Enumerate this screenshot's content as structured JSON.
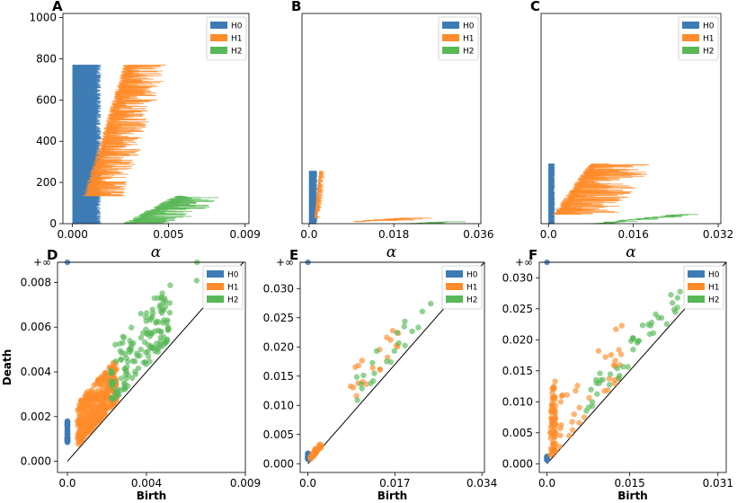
{
  "colors": {
    "H0": "#3d7bb5",
    "H1": "#ff8c2a",
    "H2": "#58b956"
  },
  "labels": {
    "alpha": "α",
    "birth": "Birth",
    "death": "Death",
    "inf": "+∞"
  },
  "chart_data": [
    {
      "panel": "A",
      "type": "barcode",
      "xlabel": "α",
      "ylim": [
        0,
        1020
      ],
      "xlim": [
        -0.0005,
        0.0092
      ],
      "xticks": [
        "0.000",
        "0.005",
        "0.009"
      ],
      "xtick_values": [
        0,
        0.005,
        0.009
      ],
      "yticks": [
        "0",
        "200",
        "400",
        "600",
        "800",
        "1000"
      ],
      "ytick_values": [
        0,
        200,
        400,
        600,
        800,
        1000
      ],
      "legend": [
        "H0",
        "H1",
        "H2"
      ],
      "series": [
        {
          "name": "H0",
          "start": 0,
          "end": 770,
          "birth": 0,
          "death_min": 0.00085,
          "death_max": 0.0015
        },
        {
          "name": "H1",
          "start": 770,
          "end": 135,
          "birth_min": 0.0007,
          "birth_max": 0.0028,
          "length_min": 0.0002,
          "length_max": 0.0021
        },
        {
          "name": "H2",
          "start": 135,
          "end": 0,
          "birth_min": 0.0028,
          "birth_max": 0.0055,
          "length_min": 0.0003,
          "length_max": 0.0028
        }
      ]
    },
    {
      "panel": "B",
      "type": "barcode",
      "xlabel": "α",
      "ylim": [
        0,
        1020
      ],
      "xlim": [
        -0.0015,
        0.0365
      ],
      "xticks": [
        "0.0",
        "0.018",
        "0.036"
      ],
      "xtick_values": [
        0,
        0.018,
        0.036
      ],
      "yticks": [],
      "ytick_values": [],
      "legend": [
        "H0",
        "H1",
        "H2"
      ],
      "series": [
        {
          "name": "H0",
          "start": 0,
          "end": 255,
          "birth": 0,
          "death_min": 0.0008,
          "death_max": 0.0018
        },
        {
          "name": "H1",
          "start": 255,
          "end": 28,
          "birth_min": 0.0012,
          "birth_max": 0.0022,
          "length_min": 0.0003,
          "length_max": 0.0012
        },
        {
          "name": "H1",
          "start": 28,
          "end": 10,
          "birth_min": 0.009,
          "birth_max": 0.02,
          "length_min": 0.002,
          "length_max": 0.008
        },
        {
          "name": "H2",
          "start": 10,
          "end": 0,
          "birth_min": 0.02,
          "birth_max": 0.029,
          "length_min": 0.002,
          "length_max": 0.006
        }
      ]
    },
    {
      "panel": "C",
      "type": "barcode",
      "xlabel": "α",
      "ylim": [
        0,
        1020
      ],
      "xlim": [
        -0.0014,
        0.0325
      ],
      "xticks": [
        "0.0",
        "0.016",
        "0.032"
      ],
      "xtick_values": [
        0,
        0.016,
        0.032
      ],
      "yticks": [],
      "ytick_values": [],
      "legend": [
        "H0",
        "H1",
        "H2"
      ],
      "series": [
        {
          "name": "H0",
          "start": 0,
          "end": 290,
          "birth": 0,
          "death_min": 0.0006,
          "death_max": 0.0012
        },
        {
          "name": "H1",
          "start": 290,
          "end": 45,
          "birth_min": 0.0012,
          "birth_max": 0.008,
          "length_min": 0.001,
          "length_max": 0.012
        },
        {
          "name": "H2",
          "start": 45,
          "end": 0,
          "birth_min": 0.008,
          "birth_max": 0.025,
          "length_min": 0.001,
          "length_max": 0.004
        }
      ]
    },
    {
      "panel": "D",
      "type": "scatter",
      "xlabel": "Birth",
      "ylabel": "Death",
      "xlim": [
        -0.0005,
        0.009
      ],
      "ylim": [
        -0.0005,
        0.0089
      ],
      "inf_y": 0.0089,
      "xticks": [
        "0.0",
        "0.004",
        "0.009"
      ],
      "xtick_values": [
        0,
        0.004,
        0.009
      ],
      "yticks": [
        "0.000",
        "0.002",
        "0.004",
        "0.006",
        "0.008"
      ],
      "ytick_values": [
        0,
        0.002,
        0.004,
        0.006,
        0.008
      ],
      "legend": [
        "H0",
        "H1",
        "H2"
      ],
      "series": [
        {
          "name": "H0",
          "n": 60,
          "birth_min": 0,
          "birth_max": 0,
          "delta_min": 0.00085,
          "delta_max": 0.0018,
          "inf_birth": 0
        },
        {
          "name": "H1",
          "n": 380,
          "birth_min": 0.0005,
          "birth_max": 0.0025,
          "delta_min": 0.0002,
          "delta_max": 0.0021
        },
        {
          "name": "H2",
          "n": 150,
          "birth_min": 0.0022,
          "birth_max": 0.0052,
          "delta_min": 0.0003,
          "delta_max": 0.0029
        },
        {
          "name": "H2",
          "n": 2,
          "birth_min": 0.0049,
          "birth_max": 0.0068,
          "delta_min": 0.0015,
          "delta_max": 0.0033
        }
      ]
    },
    {
      "panel": "E",
      "type": "scatter",
      "xlabel": "Birth",
      "ylabel": "",
      "xlim": [
        -0.0015,
        0.0345
      ],
      "ylim": [
        -0.0015,
        0.0345
      ],
      "inf_y": 0.0345,
      "xticks": [
        "0.0",
        "0.017",
        "0.034"
      ],
      "xtick_values": [
        0,
        0.017,
        0.034
      ],
      "yticks": [
        "0.000",
        "0.005",
        "0.010",
        "0.015",
        "0.020",
        "0.025",
        "0.030"
      ],
      "ytick_values": [
        0,
        0.005,
        0.01,
        0.015,
        0.02,
        0.025,
        0.03
      ],
      "legend": [
        "H0",
        "H1",
        "H2"
      ],
      "series": [
        {
          "name": "H0",
          "n": 25,
          "birth_min": 0,
          "birth_max": 0,
          "delta_min": 0.0008,
          "delta_max": 0.0018,
          "inf_birth": 0
        },
        {
          "name": "H1",
          "n": 35,
          "birth_min": 0.0005,
          "birth_max": 0.0028,
          "delta_min": 0.0002,
          "delta_max": 0.0012
        },
        {
          "name": "H1",
          "n": 20,
          "birth_min": 0.008,
          "birth_max": 0.018,
          "delta_min": 0.002,
          "delta_max": 0.008
        },
        {
          "name": "H2",
          "n": 22,
          "birth_min": 0.009,
          "birth_max": 0.027,
          "delta_min": 0.0005,
          "delta_max": 0.006
        }
      ]
    },
    {
      "panel": "F",
      "type": "scatter",
      "xlabel": "Birth",
      "ylabel": "",
      "xlim": [
        -0.0014,
        0.0325
      ],
      "ylim": [
        -0.0014,
        0.0325
      ],
      "inf_y": 0.0325,
      "xticks": [
        "0.0",
        "0.015",
        "0.031"
      ],
      "xtick_values": [
        0,
        0.015,
        0.031
      ],
      "yticks": [
        "0.000",
        "0.005",
        "0.010",
        "0.015",
        "0.020",
        "0.025",
        "0.030"
      ],
      "ytick_values": [
        0,
        0.005,
        0.01,
        0.015,
        0.02,
        0.025,
        0.03
      ],
      "legend": [
        "H0",
        "H1",
        "H2"
      ],
      "series": [
        {
          "name": "H0",
          "n": 25,
          "birth_min": 0,
          "birth_max": 0,
          "delta_min": 0.0006,
          "delta_max": 0.0012,
          "inf_birth": 0
        },
        {
          "name": "H1",
          "n": 70,
          "birth_min": 0.0006,
          "birth_max": 0.0016,
          "delta_min": 0.0005,
          "delta_max": 0.012
        },
        {
          "name": "H1",
          "n": 35,
          "birth_min": 0.002,
          "birth_max": 0.014,
          "delta_min": 0.0005,
          "delta_max": 0.01
        },
        {
          "name": "H2",
          "n": 45,
          "birth_min": 0.007,
          "birth_max": 0.026,
          "delta_min": 0.0008,
          "delta_max": 0.005
        }
      ]
    }
  ]
}
